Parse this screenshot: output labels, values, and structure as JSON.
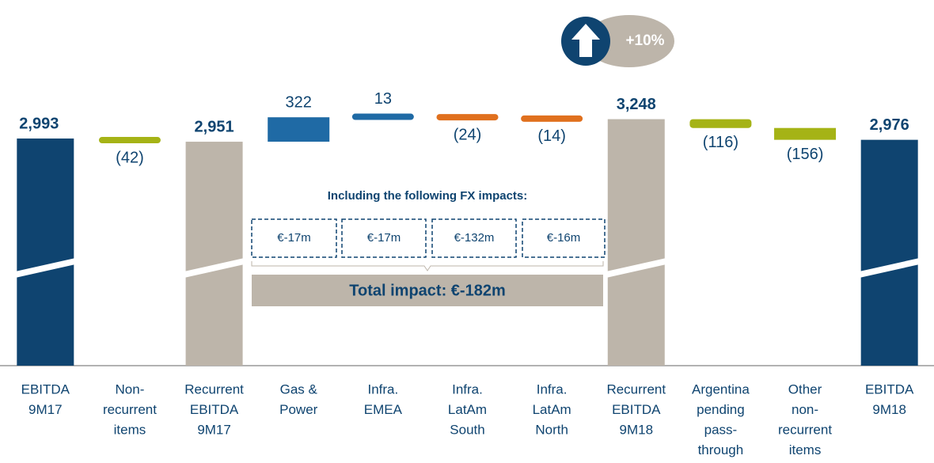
{
  "chart_data": {
    "type": "waterfall",
    "categories": [
      [
        "EBITDA",
        "9M17"
      ],
      [
        "Non-",
        "recurrent",
        "items"
      ],
      [
        "Recurrent",
        "EBITDA",
        "9M17"
      ],
      [
        "Gas &",
        "Power"
      ],
      [
        "Infra.",
        "EMEA"
      ],
      [
        "Infra.",
        "LatAm",
        "South"
      ],
      [
        "Infra.",
        "LatAm",
        "North"
      ],
      [
        "Recurrent",
        "EBITDA",
        "9M18"
      ],
      [
        "Argentina",
        "pending",
        "pass-",
        "through"
      ],
      [
        "Other",
        "non-",
        "recurrent",
        "items"
      ],
      [
        "EBITDA",
        "9M18"
      ]
    ],
    "values": [
      2993,
      -42,
      2951,
      322,
      13,
      -24,
      -14,
      3248,
      -116,
      -156,
      2976
    ],
    "value_labels": [
      "2,993",
      "(42)",
      "2,951",
      "322",
      "13",
      "(24)",
      "(14)",
      "3,248",
      "(116)",
      "(156)",
      "2,976"
    ],
    "measure": [
      "total",
      "relative",
      "total",
      "relative",
      "relative",
      "relative",
      "relative",
      "total",
      "relative",
      "relative",
      "total"
    ],
    "colors": [
      "#0f4470",
      "#a5b316",
      "#bdb5aa",
      "#1f6aa5",
      "#1f6aa5",
      "#e0701e",
      "#e0701e",
      "#bdb5aa",
      "#a5b316",
      "#a5b316",
      "#0f4470"
    ],
    "ylim": [
      0,
      3400
    ],
    "annotations": {
      "growth": "+10%",
      "fx_heading": "Including the following FX impacts:",
      "fx_impacts": [
        "€-17m",
        "€-17m",
        "€-132m",
        "€-16m"
      ],
      "total_impact": "Total impact: €-182m"
    }
  }
}
